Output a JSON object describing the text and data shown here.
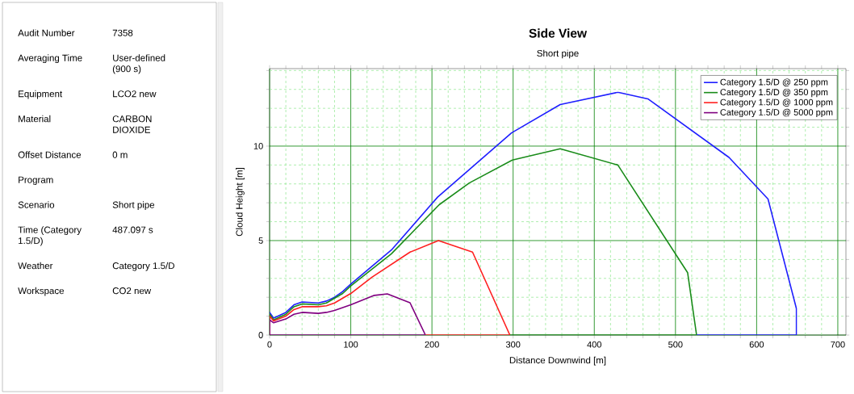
{
  "chart_data": [
    {
      "type": "other",
      "categories": [
        "Audit Number",
        "Averaging Time",
        "Equipment",
        "Material",
        "Offset Distance",
        "Program",
        "Scenario",
        "Time (Category 1.5/D)",
        "Weather",
        "Workspace"
      ],
      "value_labels": [
        "7358",
        "User-defined (900 s)",
        "LCO2 new",
        "CARBON DIOXIDE",
        "0 m",
        null,
        "Short pipe",
        "487.097 s",
        "Category 1.5/D",
        "CO2 new"
      ]
    },
    {
      "type": "line",
      "title": "Side View",
      "subtitle": "Short pipe",
      "xlabel": "Distance Downwind [m]",
      "ylabel": "Cloud Height [m]",
      "xlim": [
        0,
        710
      ],
      "ylim": [
        0,
        14.1
      ],
      "xticks": [
        0,
        {
          "value": 20,
          "label": null
        },
        {
          "value": 40,
          "label": null
        },
        {
          "value": 60,
          "label": null
        },
        {
          "value": 80,
          "label": null
        },
        100,
        {
          "value": 120,
          "label": null
        },
        {
          "value": 140,
          "label": null
        },
        {
          "value": 160,
          "label": null
        },
        {
          "value": 180,
          "label": null
        },
        200,
        {
          "value": 220,
          "label": null
        },
        {
          "value": 240,
          "label": null
        },
        {
          "value": 260,
          "label": null
        },
        {
          "value": 280,
          "label": null
        },
        300,
        {
          "value": 320,
          "label": null
        },
        {
          "value": 340,
          "label": null
        },
        {
          "value": 360,
          "label": null
        },
        {
          "value": 380,
          "label": null
        },
        400,
        {
          "value": 420,
          "label": null
        },
        {
          "value": 440,
          "label": null
        },
        {
          "value": 460,
          "label": null
        },
        {
          "value": 480,
          "label": null
        },
        500,
        {
          "value": 520,
          "label": null
        },
        {
          "value": 540,
          "label": null
        },
        {
          "value": 560,
          "label": null
        },
        {
          "value": 580,
          "label": null
        },
        600,
        {
          "value": 620,
          "label": null
        },
        {
          "value": 640,
          "label": null
        },
        {
          "value": 660,
          "label": null
        },
        {
          "value": 680,
          "label": null
        },
        700
      ],
      "yticks": [
        0,
        {
          "value": 1,
          "label": null
        },
        {
          "value": 2,
          "label": null
        },
        {
          "value": 3,
          "label": null
        },
        {
          "value": 4,
          "label": null
        },
        5,
        {
          "value": 6,
          "label": null
        },
        {
          "value": 7,
          "label": null
        },
        {
          "value": 8,
          "label": null
        },
        {
          "value": 9,
          "label": null
        },
        10,
        {
          "value": 11,
          "label": null
        },
        {
          "value": 12,
          "label": null
        },
        {
          "value": 13,
          "label": null
        },
        {
          "value": 14,
          "label": null
        }
      ],
      "grid": true,
      "legend": "top right",
      "marker": "none",
      "line_style": "solid",
      "series": [
        {
          "name": "Category 1.5/D @ 250 ppm",
          "color": "#1f1fff",
          "x": [
            0,
            0,
            5,
            20,
            30,
            40,
            60,
            70,
            80,
            90,
            100,
            150,
            207,
            298,
            358,
            429,
            466,
            566,
            614,
            649,
            649
          ],
          "values": [
            0,
            1.2,
            0.9,
            1.2,
            1.6,
            1.75,
            1.7,
            1.8,
            2.0,
            2.3,
            2.7,
            4.5,
            7.3,
            10.7,
            12.2,
            12.85,
            12.5,
            9.4,
            7.2,
            1.4,
            0
          ]
        },
        {
          "name": "Category 1.5/D @ 350 ppm",
          "color": "#1a8c1a",
          "x": [
            0,
            0,
            5,
            20,
            30,
            40,
            60,
            70,
            80,
            90,
            100,
            150,
            209,
            246,
            299,
            358,
            429,
            515,
            526
          ],
          "values": [
            0,
            1.1,
            0.8,
            1.1,
            1.5,
            1.65,
            1.6,
            1.7,
            1.95,
            2.2,
            2.6,
            4.3,
            6.9,
            8.05,
            9.26,
            9.86,
            9.0,
            3.3,
            0
          ]
        },
        {
          "name": "Category 1.5/D @ 1000 ppm",
          "color": "#ff2020",
          "x": [
            0,
            0,
            5,
            20,
            30,
            40,
            60,
            70,
            80,
            90,
            100,
            126,
            173,
            208,
            250,
            296
          ],
          "values": [
            0,
            1.0,
            0.75,
            1.0,
            1.35,
            1.5,
            1.5,
            1.55,
            1.7,
            1.95,
            2.2,
            3.06,
            4.39,
            5.0,
            4.39,
            0
          ]
        },
        {
          "name": "Category 1.5/D @ 5000 ppm",
          "color": "#800080",
          "x": [
            0,
            0,
            5,
            20,
            30,
            40,
            60,
            70,
            80,
            100,
            129,
            145,
            173,
            192
          ],
          "values": [
            0,
            0.8,
            0.65,
            0.85,
            1.1,
            1.2,
            1.15,
            1.2,
            1.3,
            1.6,
            2.1,
            2.18,
            1.71,
            0
          ]
        },
        {
          "color": "#1f1fff",
          "x": [
            526,
            649
          ],
          "values": [
            0,
            0
          ]
        },
        {
          "color": "#1a8c1a",
          "x": [
            296,
            526
          ],
          "values": [
            0,
            0
          ]
        },
        {
          "color": "#ff2020",
          "x": [
            192,
            296
          ],
          "values": [
            0,
            0
          ]
        },
        {
          "color": "#800080",
          "x": [
            0,
            192
          ],
          "values": [
            0,
            0
          ]
        }
      ]
    }
  ]
}
